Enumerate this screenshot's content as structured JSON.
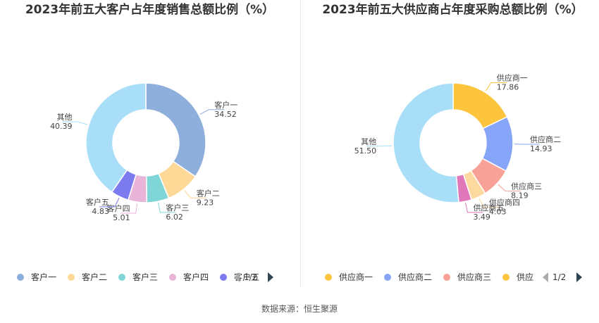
{
  "chart_data": [
    {
      "type": "pie",
      "title": "2023年前五大客户占年度销售总额比例（%）",
      "categories": [
        "客户一",
        "客户二",
        "客户三",
        "客户四",
        "客户五",
        "其他"
      ],
      "values": [
        34.52,
        9.23,
        6.02,
        5.01,
        4.83,
        40.39
      ],
      "value_labels": [
        "34.52",
        "9.23",
        "6.02",
        "5.01",
        "4.83",
        "40.39"
      ],
      "colors": [
        "#8eaedb",
        "#fdd896",
        "#80d6d7",
        "#e8b5d8",
        "#7b7bef",
        "#a8def8"
      ],
      "legend": {
        "placement": "bottom",
        "visible_items": [
          "客户一",
          "客户二",
          "客户三",
          "客户四",
          "客户五"
        ],
        "page": "1/2"
      }
    },
    {
      "type": "pie",
      "title": "2023年前五大供应商占年度采购总额比例（%）",
      "categories": [
        "供应商一",
        "供应商二",
        "供应商三",
        "供应商四",
        "供应商五",
        "其他"
      ],
      "values": [
        17.86,
        14.93,
        8.19,
        4.03,
        3.49,
        51.5
      ],
      "value_labels": [
        "17.86",
        "14.93",
        "8.19",
        "4.03",
        "3.49",
        "51.50"
      ],
      "colors": [
        "#fdc53e",
        "#86a4f8",
        "#f8a197",
        "#fcd99f",
        "#df77b9",
        "#a8def8"
      ],
      "legend": {
        "placement": "bottom",
        "visible_items": [
          "供应商一",
          "供应商二",
          "供应商三",
          "供应"
        ],
        "page": "1/2"
      }
    }
  ],
  "footer": {
    "source": "数据来源：恒生聚源"
  }
}
